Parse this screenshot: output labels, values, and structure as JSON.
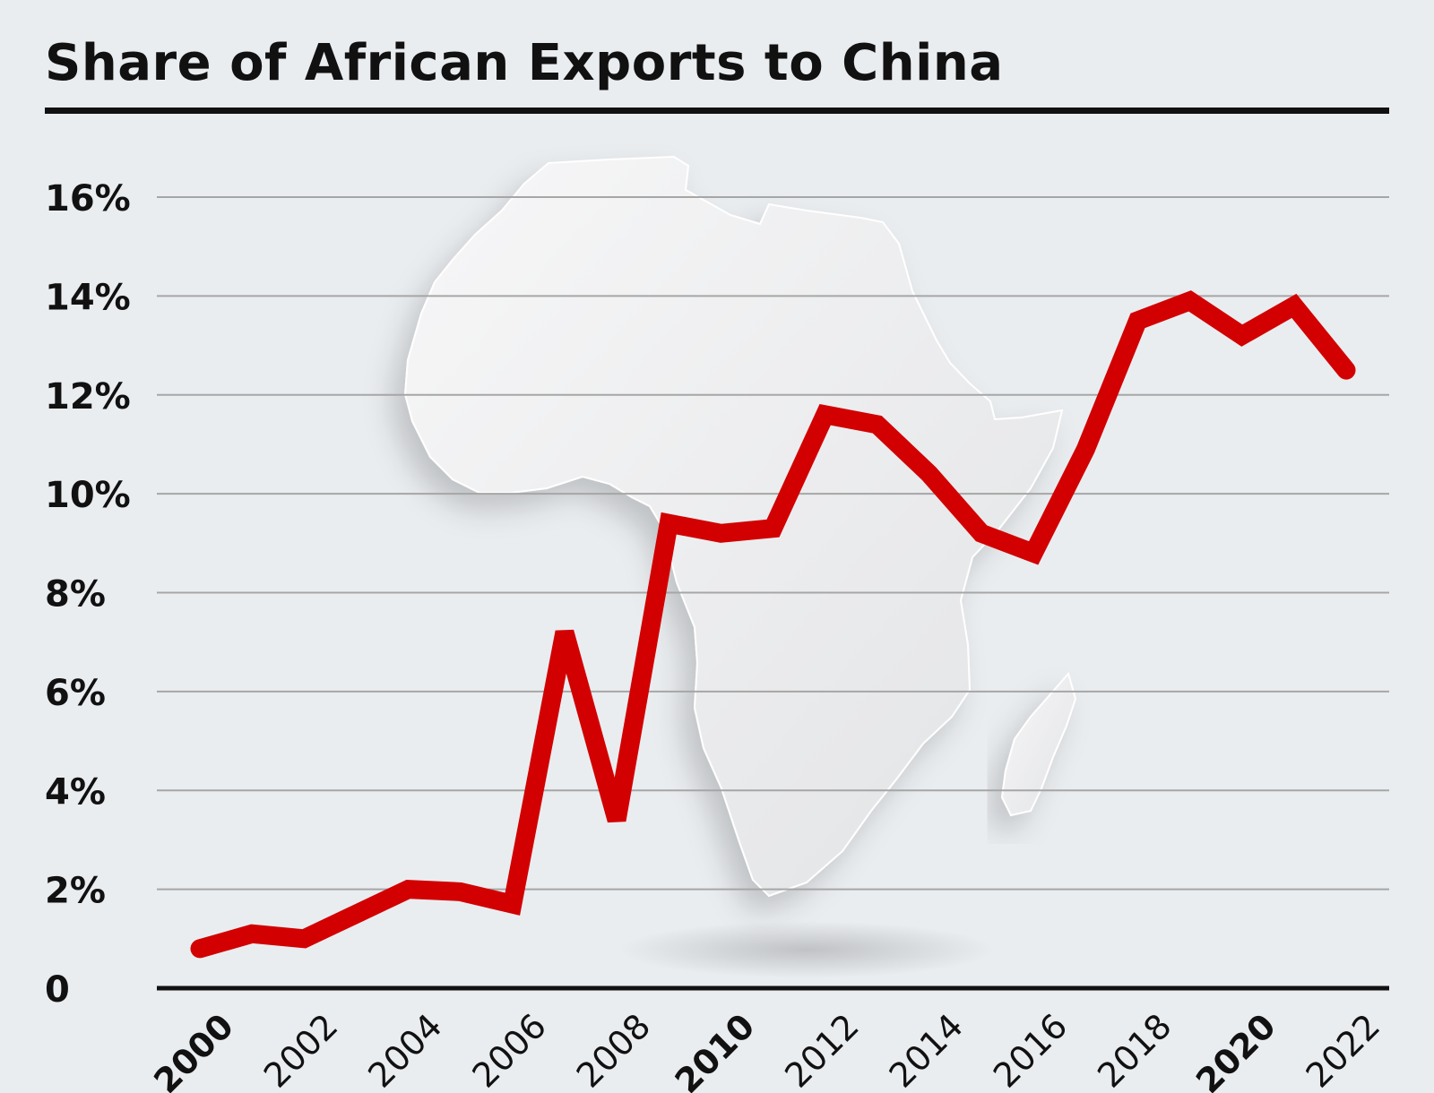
{
  "title": "Share of African Exports to China",
  "colors": {
    "background": "#eaedf0",
    "line": "#d20000",
    "text": "#111111",
    "grid": "#a6a6a6",
    "africa_shape": "#f4f4f5"
  },
  "icons": {
    "background_image": "africa-map-paper-cutout-icon"
  },
  "chart_data": {
    "type": "line",
    "title": "Share of African Exports to China",
    "xlabel": "",
    "ylabel": "",
    "x": [
      2000,
      2001,
      2002,
      2003,
      2004,
      2005,
      2006,
      2007,
      2008,
      2009,
      2010,
      2011,
      2012,
      2013,
      2014,
      2015,
      2016,
      2017,
      2018,
      2019,
      2020,
      2021,
      2022
    ],
    "values": [
      0.8,
      1.1,
      1.0,
      1.5,
      2.0,
      1.95,
      1.7,
      7.2,
      3.4,
      9.4,
      9.2,
      9.3,
      11.6,
      11.4,
      10.4,
      9.2,
      8.8,
      10.9,
      13.5,
      13.9,
      13.2,
      13.8,
      12.5
    ],
    "ylim": [
      0,
      16
    ],
    "y_ticks": [
      0,
      2,
      4,
      6,
      8,
      10,
      12,
      14,
      16
    ],
    "y_tick_labels": [
      "0",
      "2%",
      "4%",
      "6%",
      "8%",
      "10%",
      "12%",
      "14%",
      "16%"
    ],
    "x_ticks": [
      2000,
      2002,
      2004,
      2006,
      2008,
      2010,
      2012,
      2014,
      2016,
      2018,
      2020,
      2022
    ],
    "x_tick_labels": [
      "2000",
      "2002",
      "2004",
      "2006",
      "2008",
      "2010",
      "2012",
      "2014",
      "2016",
      "2018",
      "2020",
      "2022"
    ],
    "x_tick_bold": [
      "2000",
      "2010",
      "2020"
    ],
    "grid": true,
    "legend": "none"
  }
}
